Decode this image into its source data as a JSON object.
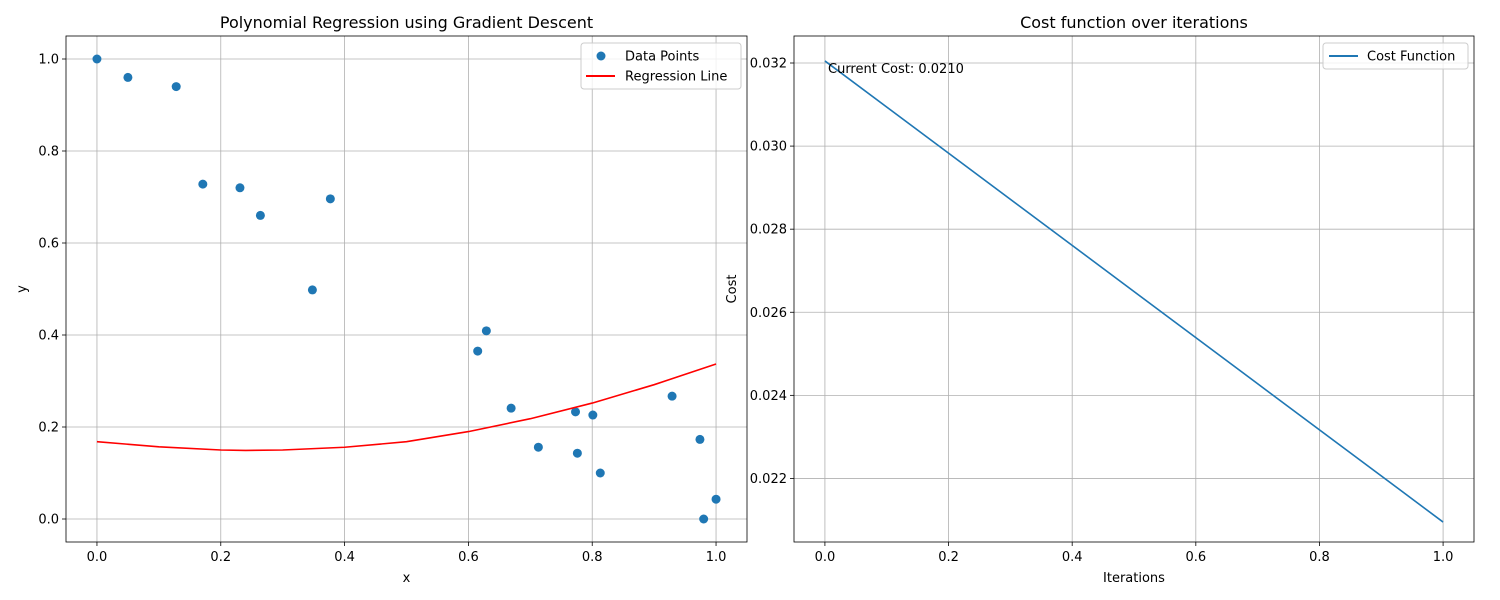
{
  "chart_data": [
    {
      "type": "scatter",
      "title": "Polynomial Regression using Gradient Descent",
      "xlabel": "x",
      "ylabel": "y",
      "xlim": [
        -0.05,
        1.05
      ],
      "ylim": [
        -0.05,
        1.05
      ],
      "xticks": [
        0.0,
        0.2,
        0.4,
        0.6,
        0.8,
        1.0
      ],
      "yticks": [
        0.0,
        0.2,
        0.4,
        0.6,
        0.8,
        1.0
      ],
      "xtick_labels": [
        "0.0",
        "0.2",
        "0.4",
        "0.6",
        "0.8",
        "1.0"
      ],
      "ytick_labels": [
        "0.0",
        "0.2",
        "0.4",
        "0.6",
        "0.8",
        "1.0"
      ],
      "grid": true,
      "legend_position": "top-right",
      "legend": [
        "Data Points",
        "Regression Line"
      ],
      "series": [
        {
          "name": "Data Points",
          "kind": "scatter",
          "color": "#1f77b4",
          "points": [
            [
              0.0,
              1.0
            ],
            [
              0.05,
              0.96
            ],
            [
              0.128,
              0.94
            ],
            [
              0.171,
              0.728
            ],
            [
              0.231,
              0.72
            ],
            [
              0.264,
              0.66
            ],
            [
              0.348,
              0.498
            ],
            [
              0.377,
              0.696
            ],
            [
              0.615,
              0.365
            ],
            [
              0.629,
              0.409
            ],
            [
              0.669,
              0.241
            ],
            [
              0.713,
              0.156
            ],
            [
              0.773,
              0.233
            ],
            [
              0.776,
              0.143
            ],
            [
              0.801,
              0.226
            ],
            [
              0.813,
              0.1
            ],
            [
              0.929,
              0.267
            ],
            [
              0.974,
              0.173
            ],
            [
              0.98,
              0.0
            ],
            [
              1.0,
              0.043
            ]
          ]
        },
        {
          "name": "Regression Line",
          "kind": "line",
          "color": "#ff0000",
          "points": [
            [
              0.0,
              0.168
            ],
            [
              0.1,
              0.157
            ],
            [
              0.2,
              0.15
            ],
            [
              0.24,
              0.149
            ],
            [
              0.3,
              0.15
            ],
            [
              0.4,
              0.156
            ],
            [
              0.5,
              0.168
            ],
            [
              0.6,
              0.19
            ],
            [
              0.7,
              0.218
            ],
            [
              0.8,
              0.252
            ],
            [
              0.9,
              0.292
            ],
            [
              1.0,
              0.337
            ]
          ]
        }
      ]
    },
    {
      "type": "line",
      "title": "Cost function over iterations",
      "xlabel": "Iterations",
      "ylabel": "Cost",
      "xlim": [
        -0.05,
        1.05
      ],
      "ylim": [
        0.02047,
        0.03265
      ],
      "xticks": [
        0.0,
        0.2,
        0.4,
        0.6,
        0.8,
        1.0
      ],
      "yticks": [
        0.022,
        0.024,
        0.026,
        0.028,
        0.03,
        0.032
      ],
      "xtick_labels": [
        "0.0",
        "0.2",
        "0.4",
        "0.6",
        "0.8",
        "1.0"
      ],
      "ytick_labels": [
        "0.022",
        "0.024",
        "0.026",
        "0.028",
        "0.030",
        "0.032"
      ],
      "grid": true,
      "legend_position": "top-right",
      "legend": [
        "Cost Function"
      ],
      "annotation": "Current Cost: 0.0210",
      "series": [
        {
          "name": "Cost Function",
          "kind": "line",
          "color": "#1f77b4",
          "points": [
            [
              0.0,
              0.03205
            ],
            [
              1.0,
              0.02095
            ]
          ]
        }
      ]
    }
  ]
}
